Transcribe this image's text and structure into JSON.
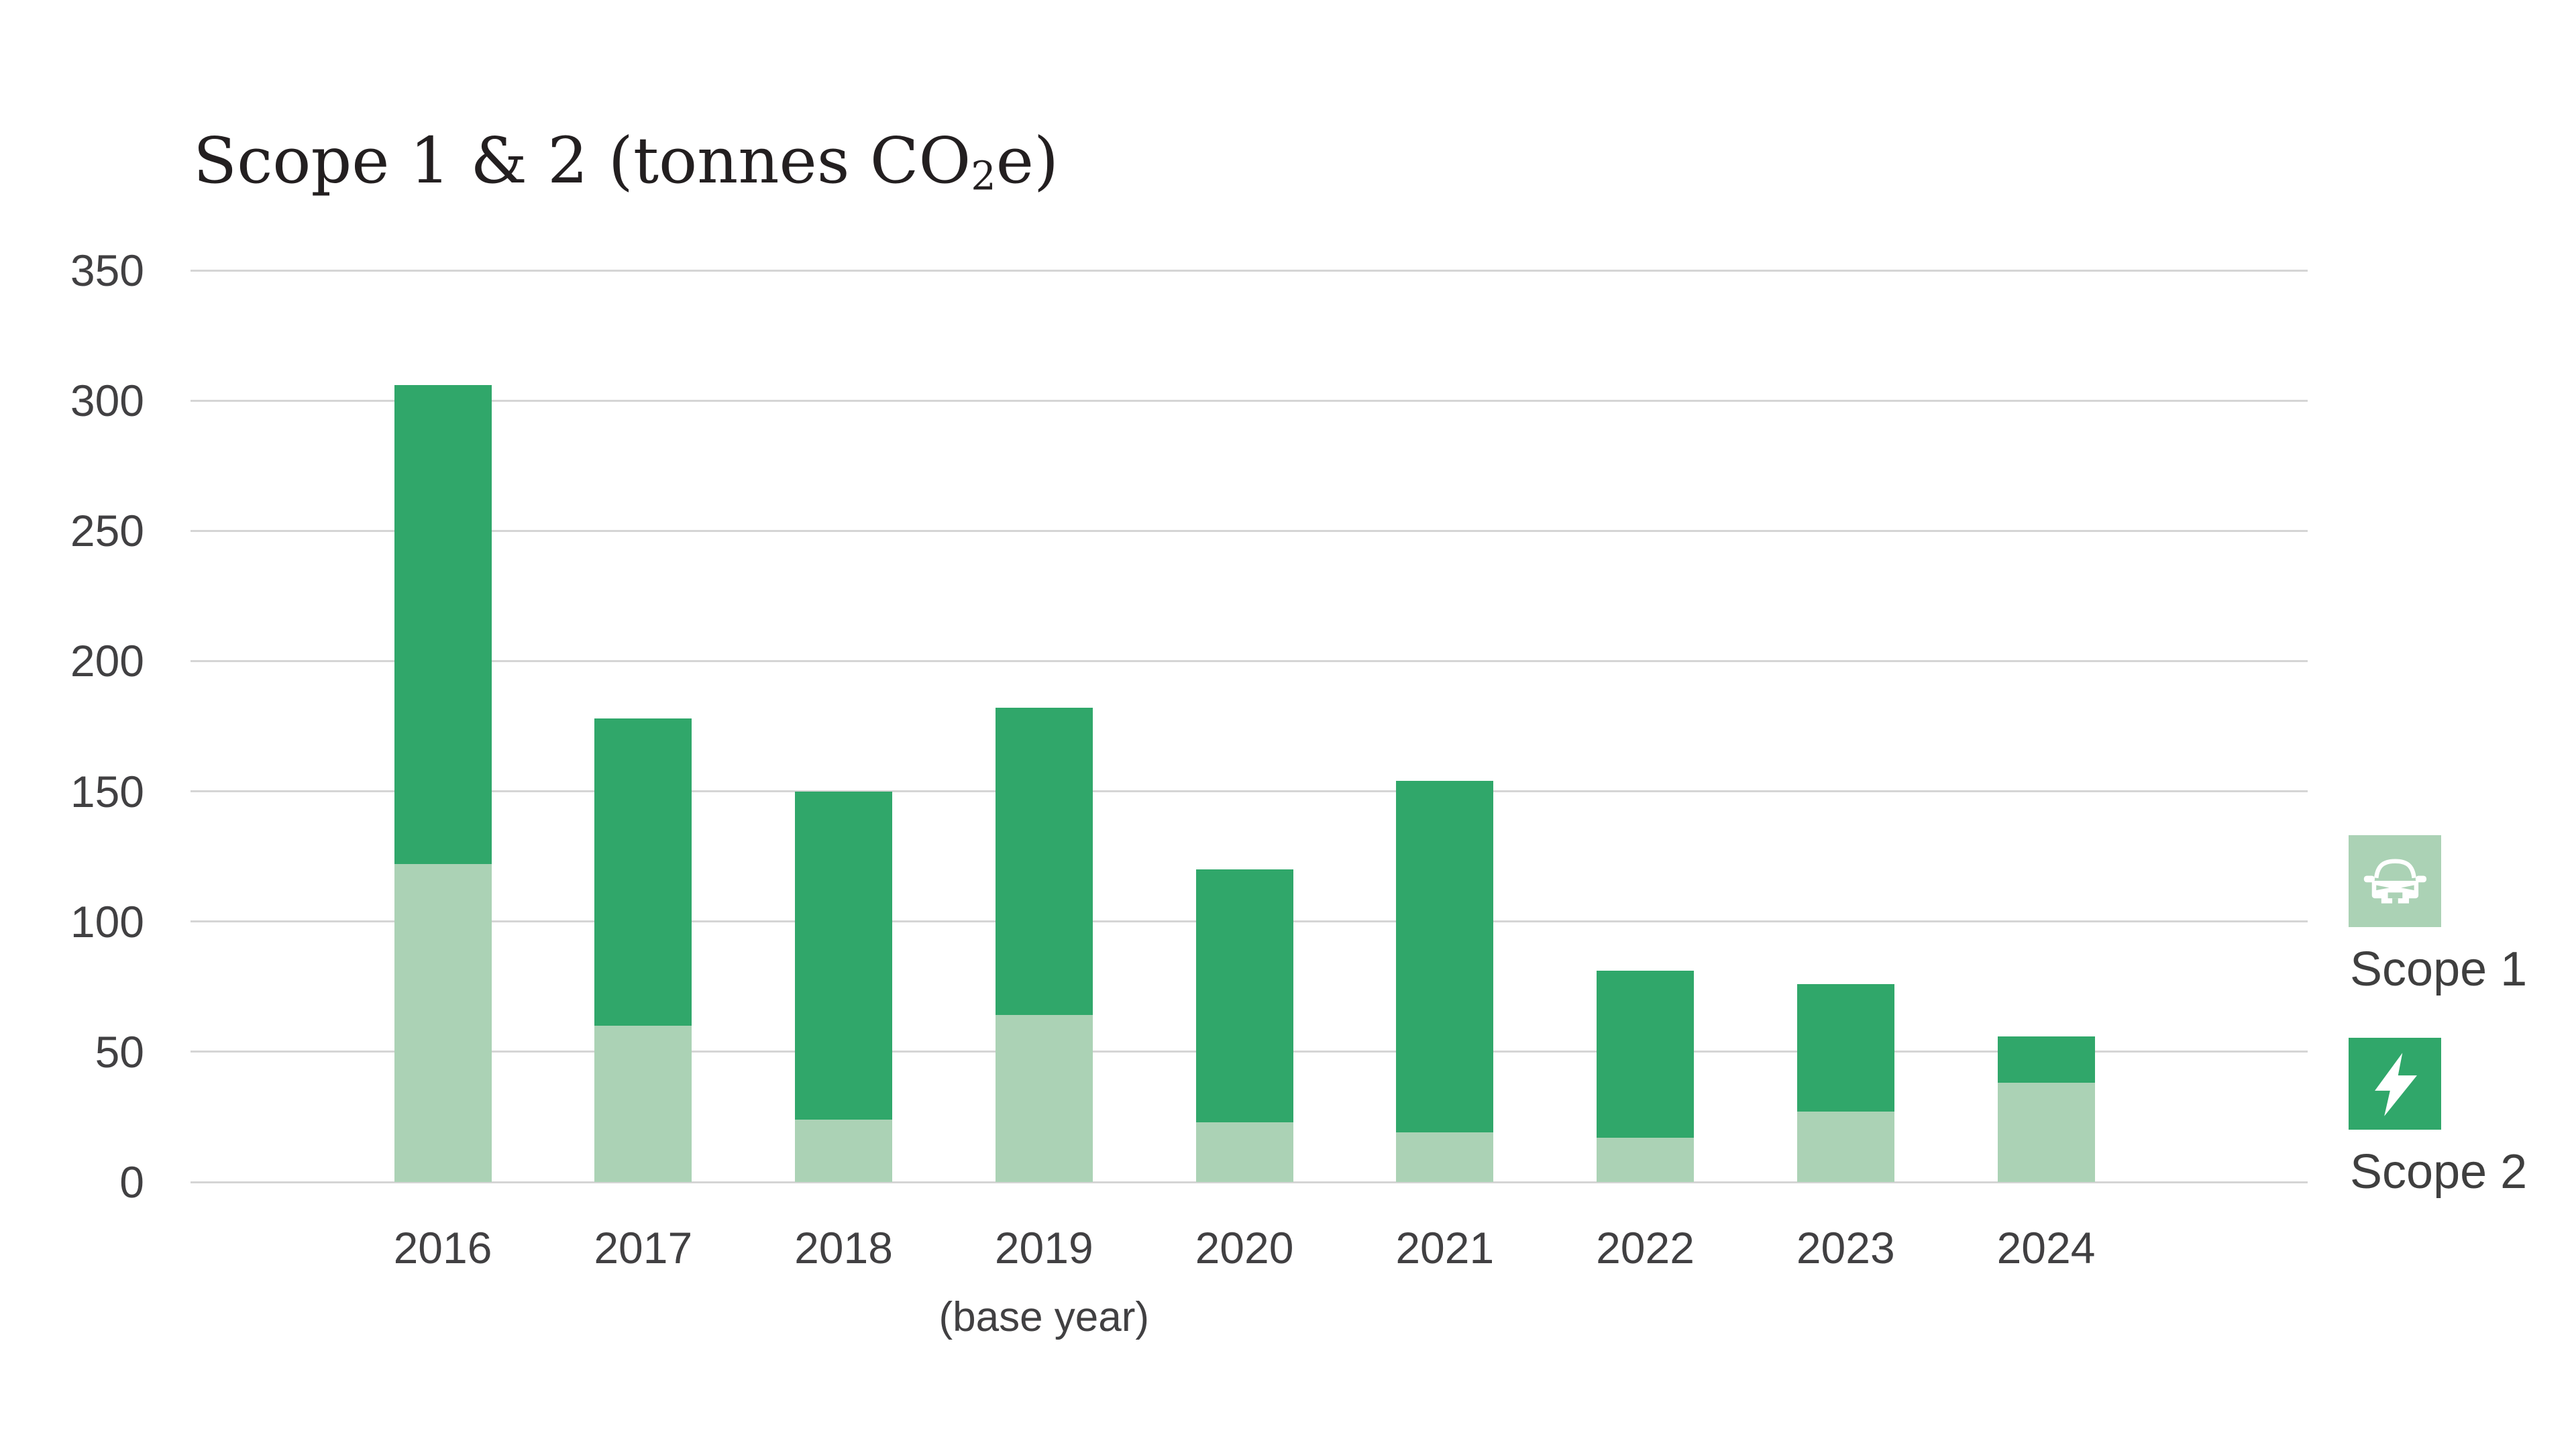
{
  "title": {
    "prefix": "Scope 1 & 2 (tonnes CO",
    "subscript": "2",
    "suffix": "e)"
  },
  "colors": {
    "scope1": "#abd2b5",
    "scope2": "#30a76a",
    "gridline": "#d5d5d5",
    "axis_text": "#414042",
    "title_text": "#231f20",
    "legend_text": "#3f3f3f",
    "icon_glyph": "#ffffff",
    "background": "#ffffff"
  },
  "y_axis": {
    "ticks": [
      "350",
      "300",
      "250",
      "200",
      "150",
      "100",
      "50",
      "0"
    ]
  },
  "x_axis": {
    "note": "(base year)",
    "note_category": "2019"
  },
  "legend": {
    "items": [
      {
        "label": "Scope 1",
        "icon": "car-icon",
        "color_key": "scope1"
      },
      {
        "label": "Scope 2",
        "icon": "bolt-icon",
        "color_key": "scope2"
      }
    ]
  },
  "chart_data": {
    "type": "bar",
    "stacked": true,
    "title": "Scope 1 & 2 (tonnes CO2e)",
    "xlabel": "",
    "ylabel": "tonnes CO2e",
    "categories": [
      "2016",
      "2017",
      "2018",
      "2019",
      "2020",
      "2021",
      "2022",
      "2023",
      "2024"
    ],
    "series": [
      {
        "name": "Scope 1",
        "color_key": "scope1",
        "values": [
          122,
          60,
          24,
          64,
          23,
          19,
          17,
          27,
          38
        ]
      },
      {
        "name": "Scope 2",
        "color_key": "scope2",
        "values": [
          184,
          118,
          126,
          118,
          97,
          135,
          64,
          49,
          18
        ]
      }
    ],
    "totals": [
      306,
      178,
      150,
      182,
      120,
      154,
      81,
      76,
      56
    ],
    "ylim": [
      0,
      350
    ],
    "ytick_step": 50,
    "grid": "horizontal",
    "legend_position": "right",
    "x_note": "(base year)",
    "x_note_category": "2019"
  }
}
